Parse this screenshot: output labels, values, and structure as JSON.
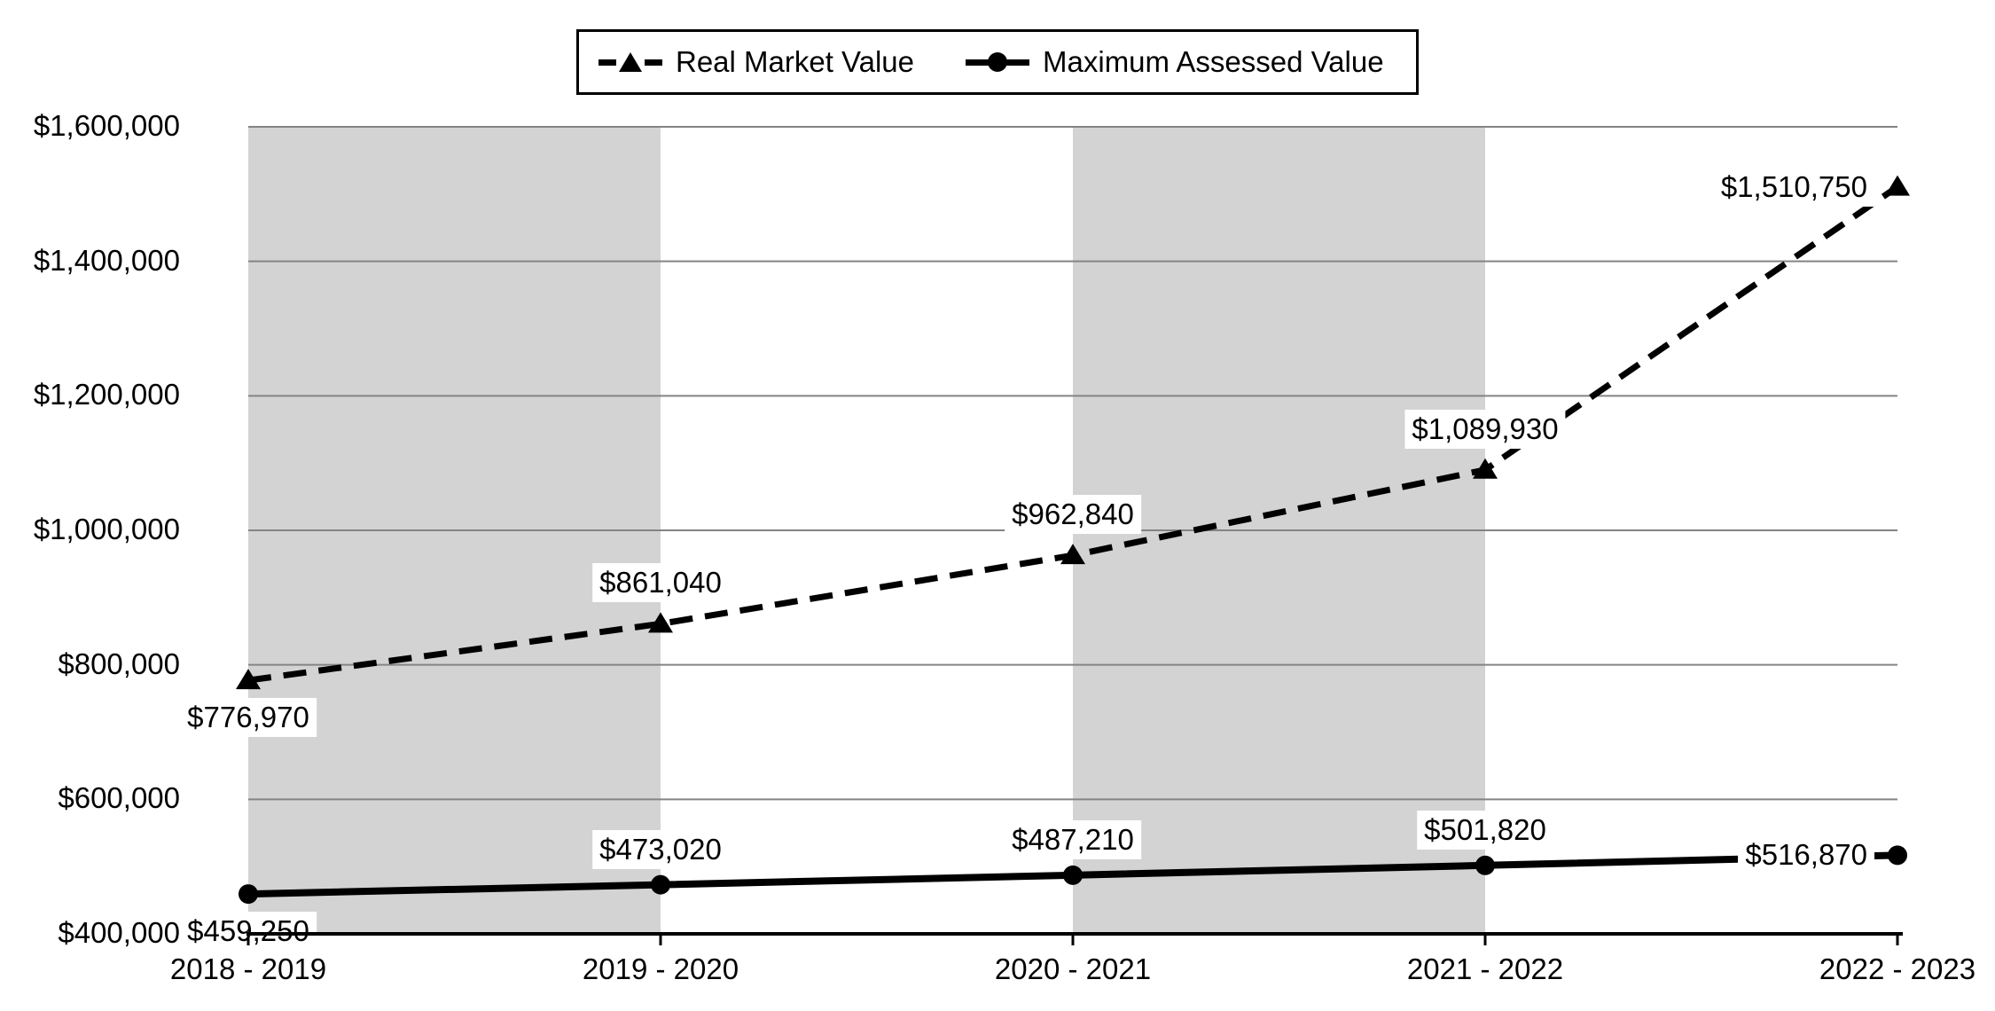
{
  "chart_data": {
    "type": "line",
    "title": "",
    "categories": [
      "2018 - 2019",
      "2019 - 2020",
      "2020 - 2021",
      "2021 - 2022",
      "2022 - 2023"
    ],
    "series": [
      {
        "name": "Real Market Value",
        "values": [
          776970,
          861040,
          962840,
          1089930,
          1510750
        ],
        "labels": [
          "$776,970",
          "$861,040",
          "$962,840",
          "$1,089,930",
          "$1,510,750"
        ],
        "line_style": "dashed",
        "marker": "triangle",
        "label_position": [
          "below",
          "above",
          "above",
          "above",
          "left"
        ]
      },
      {
        "name": "Maximum Assessed Value",
        "values": [
          459250,
          473020,
          487210,
          501820,
          516870
        ],
        "labels": [
          "$459,250",
          "$473,020",
          "$487,210",
          "$501,820",
          "$516,870"
        ],
        "line_style": "solid",
        "marker": "circle",
        "label_position": [
          "below",
          "above",
          "above",
          "above",
          "left"
        ]
      }
    ],
    "y_axis": {
      "min": 400000,
      "max": 1600000,
      "step": 200000,
      "tick_values": [
        400000,
        600000,
        800000,
        1000000,
        1200000,
        1400000,
        1600000
      ],
      "tick_labels": [
        "$400,000",
        "$600,000",
        "$800,000",
        "$1,000,000",
        "$1,200,000",
        "$1,400,000",
        "$1,600,000"
      ]
    },
    "x_axis": {
      "position": "on-tick-marks",
      "grid": "horizontal-only"
    },
    "legend": {
      "position": "top",
      "border": true
    },
    "plot_bands": {
      "spans": [
        [
          0,
          1
        ],
        [
          2,
          3
        ]
      ]
    },
    "colors": {
      "series": "#000000",
      "gridline": "#848484",
      "band": "#d3d3d3",
      "axis": "#000000",
      "background": "#ffffff",
      "label_bg": "#ffffff"
    }
  }
}
